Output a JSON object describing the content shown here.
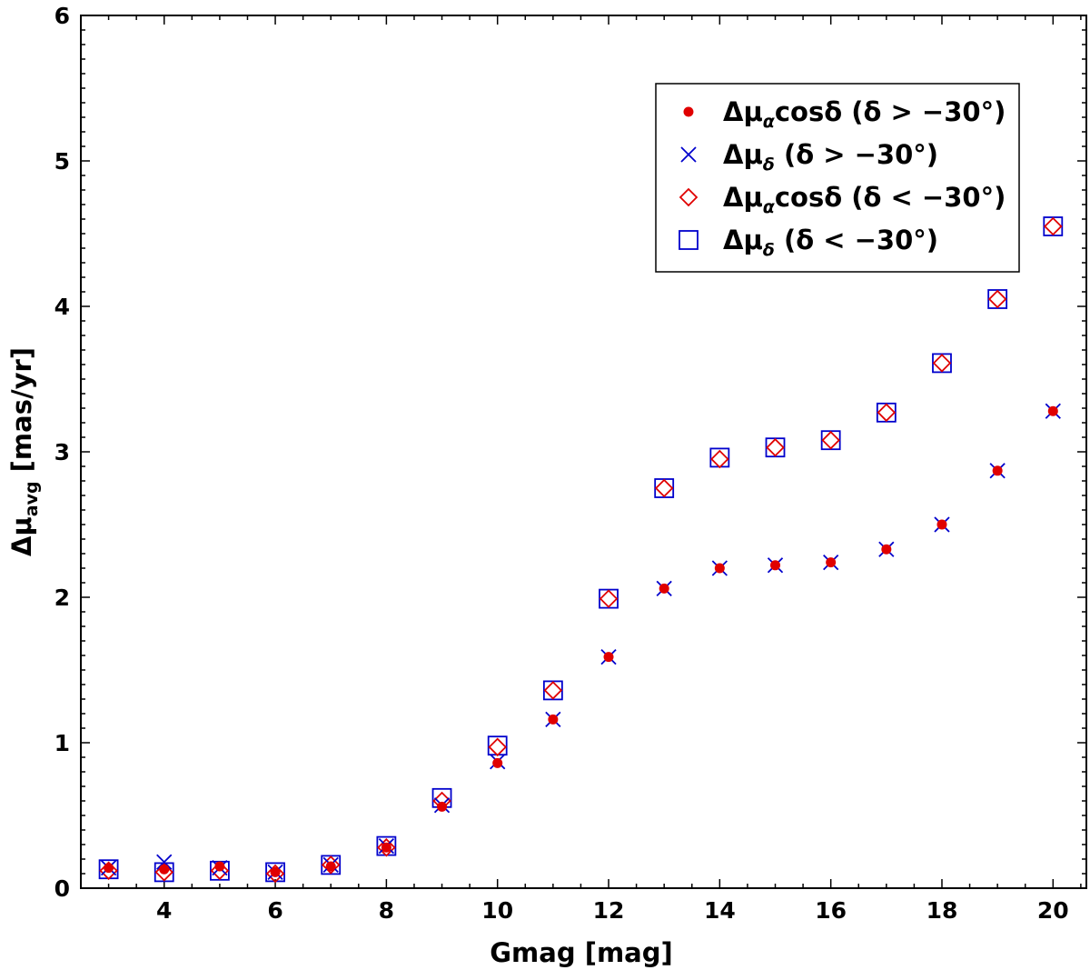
{
  "chart_data": {
    "type": "scatter",
    "xlabel": "Gmag [mag]",
    "ylabel": "Δμ",
    "ylabel_sub": "avg",
    "ylabel_unit": " [mas/yr]",
    "xlim": [
      2.5,
      20.6
    ],
    "ylim": [
      0,
      6
    ],
    "xticks": [
      4,
      6,
      8,
      10,
      12,
      14,
      16,
      18,
      20
    ],
    "yticks": [
      0,
      1,
      2,
      3,
      4,
      5,
      6
    ],
    "x": [
      3,
      4,
      5,
      6,
      7,
      8,
      9,
      10,
      11,
      12,
      13,
      14,
      15,
      16,
      17,
      18,
      19,
      20
    ],
    "legend_position": "upper-right",
    "series": [
      {
        "name": "Δμαcosδ (δ > −30°)",
        "legend": {
          "main": "Δμ",
          "sub": "α",
          "mid": "cosδ",
          "cond": " (δ > −30°)"
        },
        "marker": "dot",
        "color": "#e00000",
        "values": [
          0.14,
          0.13,
          0.15,
          0.11,
          0.15,
          0.28,
          0.56,
          0.86,
          1.16,
          1.59,
          2.06,
          2.2,
          2.22,
          2.24,
          2.33,
          2.5,
          2.87,
          3.28
        ]
      },
      {
        "name": "Δμδ (δ > −30°)",
        "legend": {
          "main": "Δμ",
          "sub": "δ",
          "mid": "",
          "cond": " (δ > −30°)"
        },
        "marker": "x",
        "color": "#0000cc",
        "values": [
          0.14,
          0.18,
          0.14,
          0.11,
          0.16,
          0.29,
          0.57,
          0.87,
          1.16,
          1.59,
          2.06,
          2.2,
          2.22,
          2.24,
          2.33,
          2.5,
          2.87,
          3.28
        ]
      },
      {
        "name": "Δμαcosδ (δ < −30°)",
        "legend": {
          "main": "Δμ",
          "sub": "α",
          "mid": "cosδ",
          "cond": " (δ < −30°)"
        },
        "marker": "diamond",
        "color": "#e00000",
        "values": [
          0.12,
          0.11,
          0.12,
          0.1,
          0.16,
          0.28,
          0.6,
          0.97,
          1.36,
          1.99,
          2.75,
          2.95,
          3.03,
          3.08,
          3.27,
          3.61,
          4.05,
          4.55
        ]
      },
      {
        "name": "Δμδ (δ < −30°)",
        "legend": {
          "main": "Δμ",
          "sub": "δ",
          "mid": "",
          "cond": " (δ < −30°)"
        },
        "marker": "square",
        "color": "#0000cc",
        "values": [
          0.13,
          0.11,
          0.12,
          0.11,
          0.16,
          0.29,
          0.62,
          0.98,
          1.36,
          1.99,
          2.75,
          2.96,
          3.03,
          3.08,
          3.27,
          3.61,
          4.05,
          4.55
        ]
      }
    ]
  }
}
